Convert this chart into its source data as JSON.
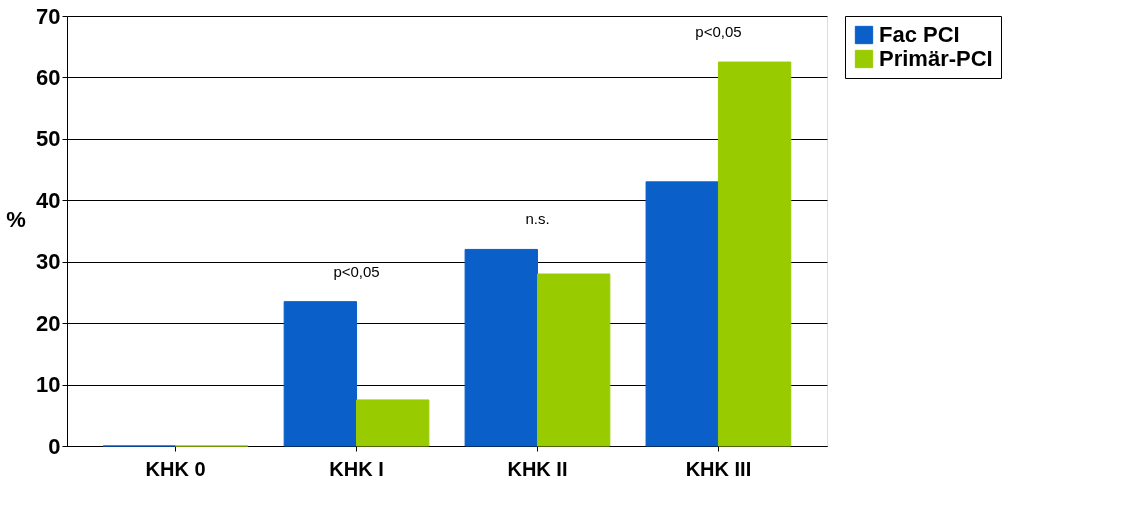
{
  "chart_data": {
    "type": "bar",
    "ylabel": "%",
    "categories": [
      "KHK 0",
      "KHK I",
      "KHK II",
      "KHK III"
    ],
    "series": [
      {
        "name": "Fac PCI",
        "color": "#0a5fc8",
        "values": [
          0,
          23.5,
          32,
          43
        ]
      },
      {
        "name": "Primär-PCI",
        "color": "#99cc00",
        "values": [
          0,
          7.5,
          28,
          62.5
        ]
      }
    ],
    "ylim": [
      0,
      70
    ],
    "yticks": [
      0,
      10,
      20,
      30,
      40,
      50,
      60,
      70
    ],
    "grid": "y",
    "legend": "right",
    "annotations": [
      "p<0,05",
      "n.s.",
      "p<0,05"
    ]
  }
}
